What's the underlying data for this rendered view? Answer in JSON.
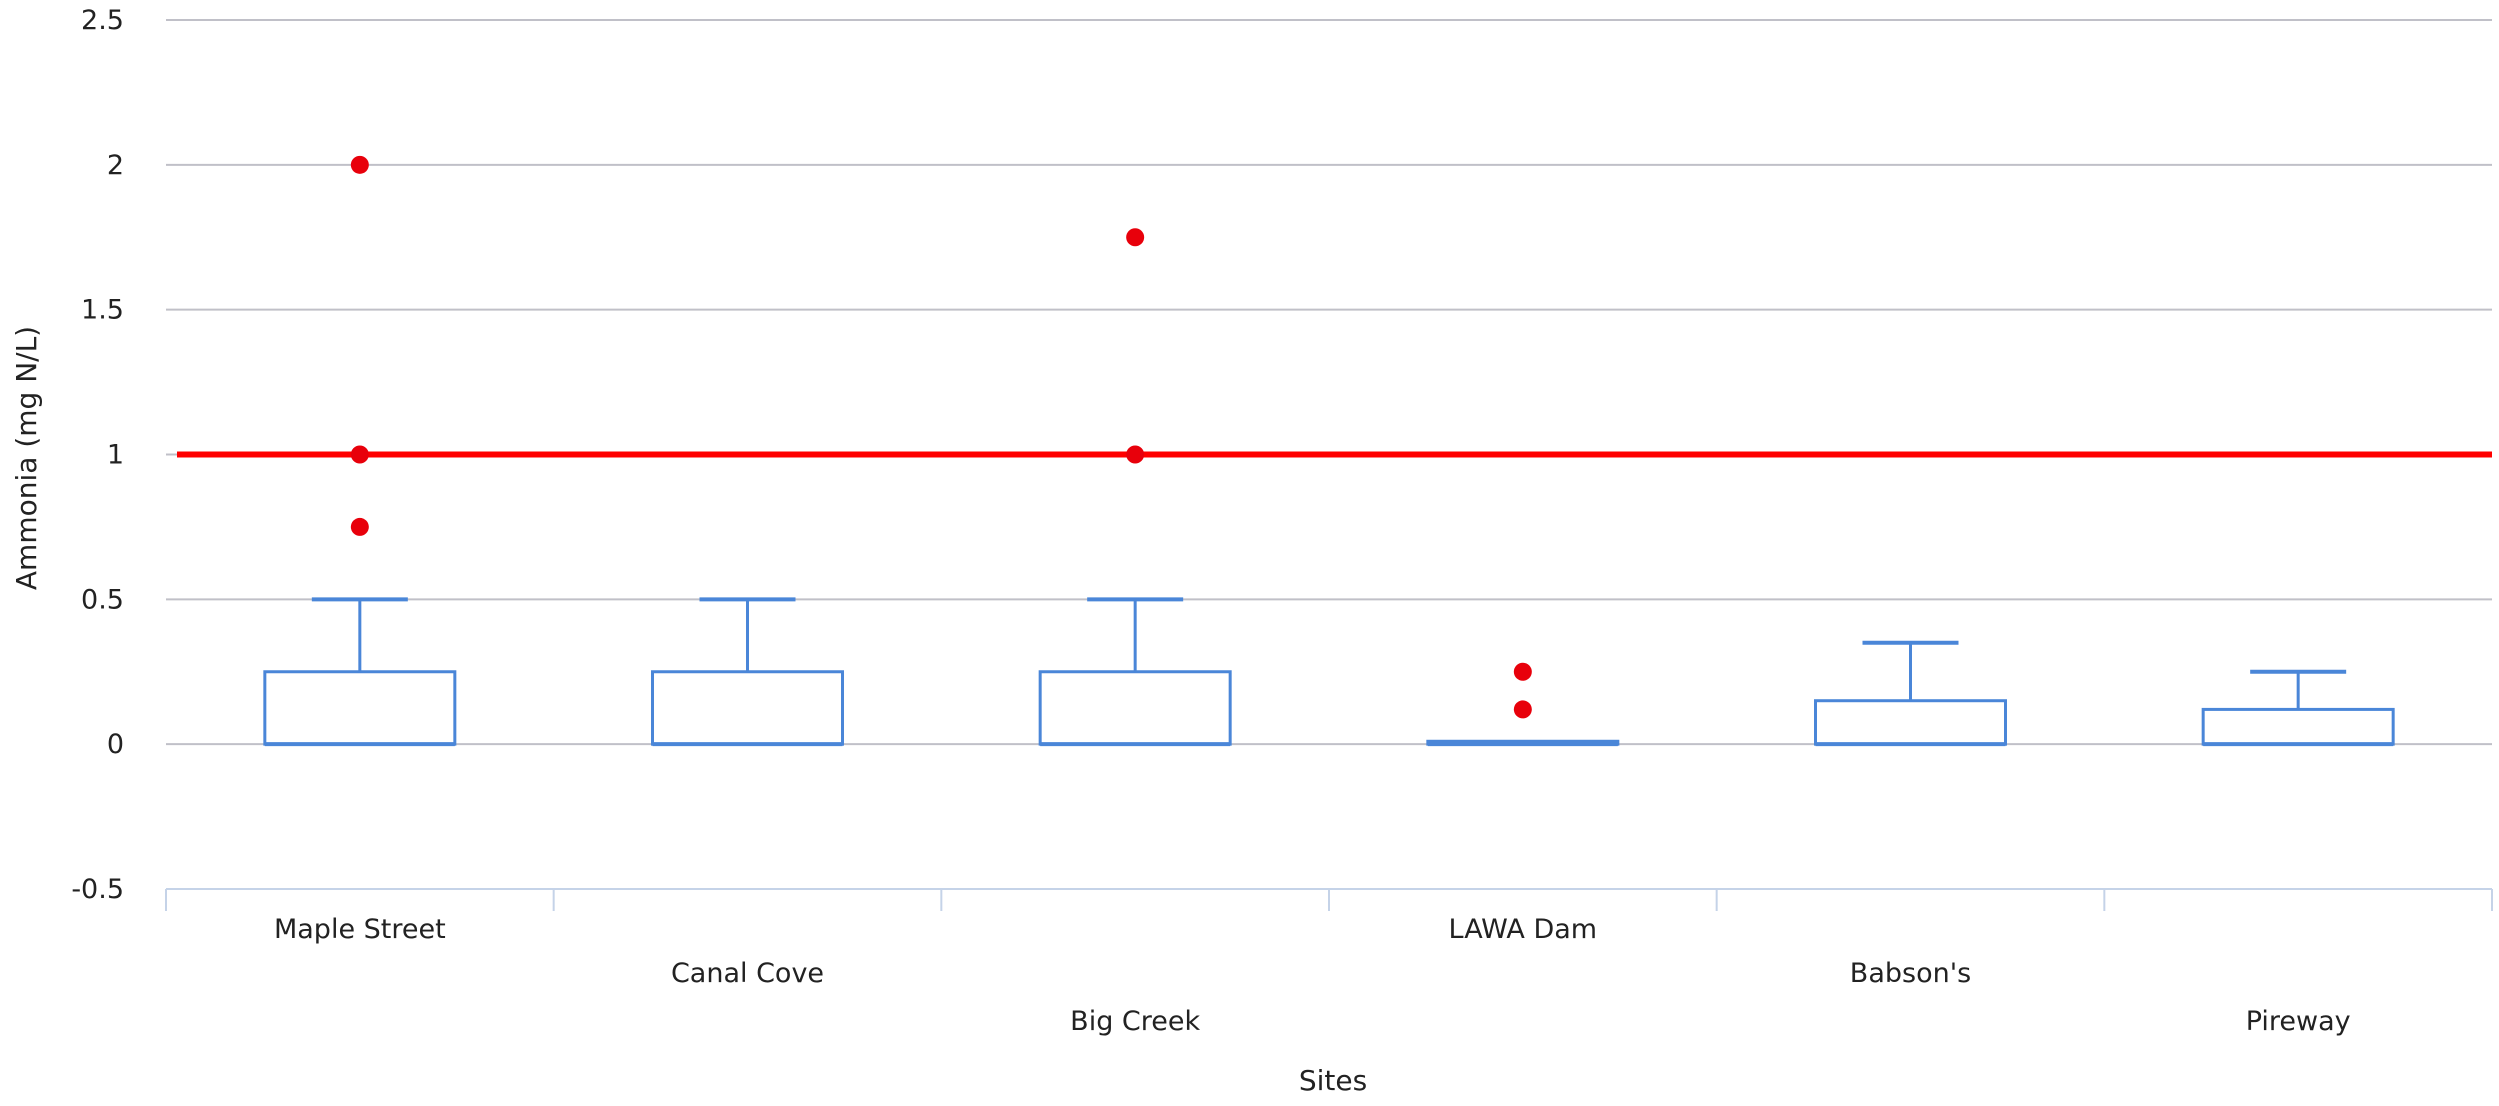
{
  "chart_data": {
    "type": "boxplot",
    "title": "",
    "xlabel": "Sites",
    "ylabel": "Ammonia (mg N/L)",
    "ylim": [
      -0.5,
      2.5
    ],
    "yticks": [
      "-0.5",
      "0",
      "0.5",
      "1",
      "1.5",
      "2",
      "2.5"
    ],
    "grid": true,
    "categories": [
      "Maple Street",
      "Canal Cove",
      "Big Creek",
      "LAWA Dam",
      "Babson's",
      "Pireway"
    ],
    "boxes": [
      {
        "min": 0,
        "q1": 0,
        "median": 0,
        "q3": 0.25,
        "max": 0.5
      },
      {
        "min": 0,
        "q1": 0,
        "median": 0,
        "q3": 0.25,
        "max": 0.5
      },
      {
        "min": 0,
        "q1": 0,
        "median": 0,
        "q3": 0.25,
        "max": 0.5
      },
      {
        "min": 0,
        "q1": 0,
        "median": 0,
        "q3": 0.01,
        "max": 0.01
      },
      {
        "min": 0,
        "q1": 0,
        "median": 0,
        "q3": 0.15,
        "max": 0.35
      },
      {
        "min": 0,
        "q1": 0,
        "median": 0,
        "q3": 0.12,
        "max": 0.25
      }
    ],
    "outliers": [
      {
        "category": "Maple Street",
        "values": [
          2.0,
          1.0,
          0.75
        ]
      },
      {
        "category": "Big Creek",
        "values": [
          1.75,
          1.0
        ]
      },
      {
        "category": "LAWA Dam",
        "values": [
          0.25,
          0.12
        ]
      }
    ],
    "threshold": {
      "value": 1.0,
      "color": "#ff0000"
    },
    "colors": {
      "box": "#4a86d8",
      "outlier": "#e8000b",
      "grid": "#c0c0c8",
      "axis": "#c5d3e8"
    }
  }
}
